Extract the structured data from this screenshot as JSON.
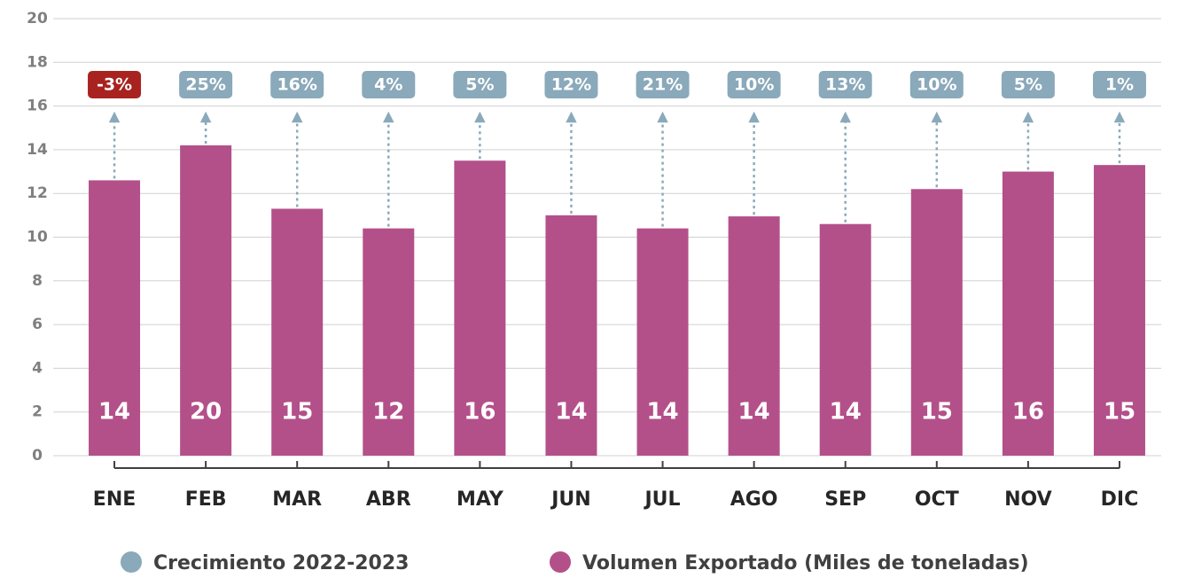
{
  "chart_data": {
    "type": "bar",
    "categories": [
      "ENE",
      "FEB",
      "MAR",
      "ABR",
      "MAY",
      "JUN",
      "JUL",
      "AGO",
      "SEP",
      "OCT",
      "NOV",
      "DIC"
    ],
    "series": [
      {
        "name": "Volumen Exportado (Miles de toneladas)",
        "color": "#b3508a",
        "values": [
          12.6,
          14.2,
          11.3,
          10.4,
          13.5,
          11.0,
          10.4,
          10.95,
          10.6,
          12.2,
          13.0,
          13.3
        ],
        "bar_labels": [
          14,
          20,
          15,
          12,
          16,
          14,
          14,
          14,
          14,
          15,
          16,
          15
        ]
      },
      {
        "name": "Crecimiento 2022-2023",
        "color": "#8aa9ba",
        "negative_color": "#a8231f",
        "values": [
          -3,
          25,
          16,
          4,
          5,
          12,
          21,
          10,
          13,
          10,
          5,
          1
        ],
        "value_labels": [
          "-3%",
          "25%",
          "16%",
          "4%",
          "5%",
          "12%",
          "21%",
          "10%",
          "13%",
          "10%",
          "5%",
          "1%"
        ]
      }
    ],
    "legend_order": [
      1,
      0
    ],
    "ylim": [
      0,
      20
    ],
    "yticks": [
      0,
      2,
      4,
      6,
      8,
      10,
      12,
      14,
      16,
      18,
      20
    ],
    "grid": true
  }
}
